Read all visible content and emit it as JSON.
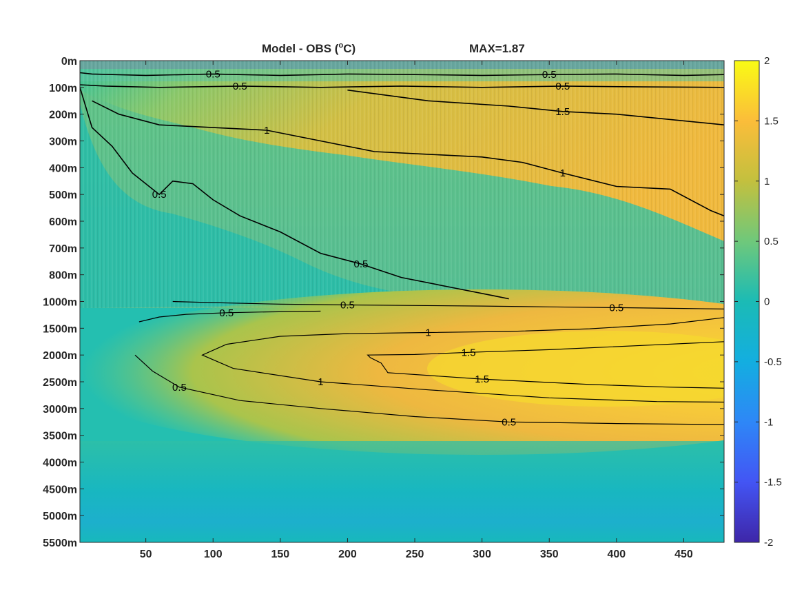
{
  "chart_data": {
    "type": "heatmap",
    "title_left": "Model - OBS (",
    "title_degree": "o",
    "title_unit": "C)",
    "title_right": "MAX=1.87",
    "colormap": "parula",
    "color_limits": [
      -2,
      2
    ],
    "colorbar_ticks": [
      "2",
      "1.5",
      "1",
      "0.5",
      "0",
      "-0.5",
      "-1",
      "-1.5",
      "-2"
    ],
    "xlim": [
      1,
      480
    ],
    "x_ticks": [
      "50",
      "100",
      "150",
      "200",
      "250",
      "300",
      "350",
      "400",
      "450"
    ],
    "x_tick_values": [
      50,
      100,
      150,
      200,
      250,
      300,
      350,
      400,
      450
    ],
    "y_ticks": [
      "0m",
      "100m",
      "200m",
      "300m",
      "400m",
      "500m",
      "600m",
      "700m",
      "800m",
      "1000m",
      "1500m",
      "2000m",
      "2500m",
      "3000m",
      "3500m",
      "4000m",
      "4500m",
      "5000m",
      "5500m"
    ],
    "contour_levels": [
      0.5,
      1,
      1.5
    ],
    "contour_label_texts": {
      "c05": "0.5",
      "c1": "1",
      "c15": "1.5"
    },
    "contours_deep": [
      {
        "level": "0.5",
        "points": [
          [
            70,
            1000
          ],
          [
            100,
            1020
          ],
          [
            150,
            1050
          ],
          [
            200,
            1065
          ],
          [
            250,
            1075
          ],
          [
            300,
            1085
          ],
          [
            350,
            1100
          ],
          [
            400,
            1115
          ],
          [
            450,
            1130
          ],
          [
            480,
            1140
          ]
        ]
      },
      {
        "level": "0.5",
        "points": [
          [
            45,
            1380
          ],
          [
            60,
            1290
          ],
          [
            80,
            1240
          ],
          [
            110,
            1210
          ],
          [
            140,
            1195
          ],
          [
            180,
            1180
          ]
        ]
      },
      {
        "level": "0.5",
        "points": [
          [
            42,
            2000
          ],
          [
            55,
            2300
          ],
          [
            75,
            2600
          ],
          [
            120,
            2850
          ],
          [
            180,
            3000
          ],
          [
            250,
            3150
          ],
          [
            320,
            3250
          ],
          [
            400,
            3280
          ],
          [
            480,
            3300
          ]
        ]
      },
      {
        "level": "1",
        "points": [
          [
            480,
            1300
          ],
          [
            440,
            1420
          ],
          [
            380,
            1510
          ],
          [
            320,
            1560
          ],
          [
            260,
            1580
          ],
          [
            200,
            1600
          ],
          [
            150,
            1650
          ],
          [
            110,
            1800
          ],
          [
            92,
            2000
          ],
          [
            115,
            2250
          ],
          [
            180,
            2500
          ],
          [
            260,
            2650
          ],
          [
            350,
            2800
          ],
          [
            430,
            2870
          ],
          [
            480,
            2880
          ]
        ]
      },
      {
        "level": "1.5",
        "points": [
          [
            480,
            1750
          ],
          [
            420,
            1820
          ],
          [
            350,
            1900
          ],
          [
            290,
            1950
          ],
          [
            250,
            1990
          ],
          [
            215,
            2000
          ],
          [
            217,
            2050
          ],
          [
            225,
            2150
          ],
          [
            230,
            2330
          ],
          [
            300,
            2450
          ],
          [
            380,
            2550
          ],
          [
            440,
            2600
          ],
          [
            480,
            2620
          ]
        ]
      }
    ],
    "contours_upper": [
      {
        "level": "0.5",
        "points": [
          [
            1,
            45
          ],
          [
            10,
            50
          ],
          [
            50,
            55
          ],
          [
            100,
            50
          ],
          [
            150,
            55
          ],
          [
            200,
            50
          ],
          [
            250,
            52
          ],
          [
            300,
            55
          ],
          [
            350,
            52
          ],
          [
            400,
            50
          ],
          [
            450,
            55
          ],
          [
            480,
            52
          ]
        ]
      },
      {
        "level": "0.5",
        "points": [
          [
            1,
            90
          ],
          [
            20,
            95
          ],
          [
            60,
            100
          ],
          [
            120,
            95
          ],
          [
            180,
            100
          ],
          [
            240,
            95
          ],
          [
            300,
            100
          ],
          [
            360,
            95
          ],
          [
            420,
            98
          ],
          [
            480,
            100
          ]
        ]
      },
      {
        "level": "1",
        "points": [
          [
            10,
            150
          ],
          [
            30,
            200
          ],
          [
            60,
            240
          ],
          [
            100,
            250
          ],
          [
            140,
            260
          ],
          [
            180,
            300
          ],
          [
            220,
            340
          ],
          [
            260,
            350
          ],
          [
            300,
            360
          ],
          [
            330,
            380
          ],
          [
            360,
            420
          ],
          [
            400,
            470
          ],
          [
            440,
            480
          ],
          [
            470,
            560
          ],
          [
            480,
            580
          ]
        ]
      },
      {
        "level": "1.5",
        "points": [
          [
            200,
            110
          ],
          [
            260,
            150
          ],
          [
            320,
            170
          ],
          [
            360,
            190
          ],
          [
            400,
            200
          ],
          [
            440,
            220
          ],
          [
            480,
            240
          ]
        ]
      },
      {
        "level": "0.5",
        "points": [
          [
            1,
            100
          ],
          [
            10,
            250
          ],
          [
            25,
            320
          ],
          [
            40,
            420
          ],
          [
            60,
            500
          ],
          [
            70,
            450
          ],
          [
            85,
            460
          ],
          [
            100,
            520
          ],
          [
            120,
            580
          ],
          [
            150,
            640
          ],
          [
            180,
            720
          ],
          [
            210,
            760
          ],
          [
            240,
            820
          ],
          [
            280,
            900
          ],
          [
            310,
            960
          ],
          [
            320,
            980
          ]
        ]
      }
    ],
    "field_note_units": "degC"
  }
}
